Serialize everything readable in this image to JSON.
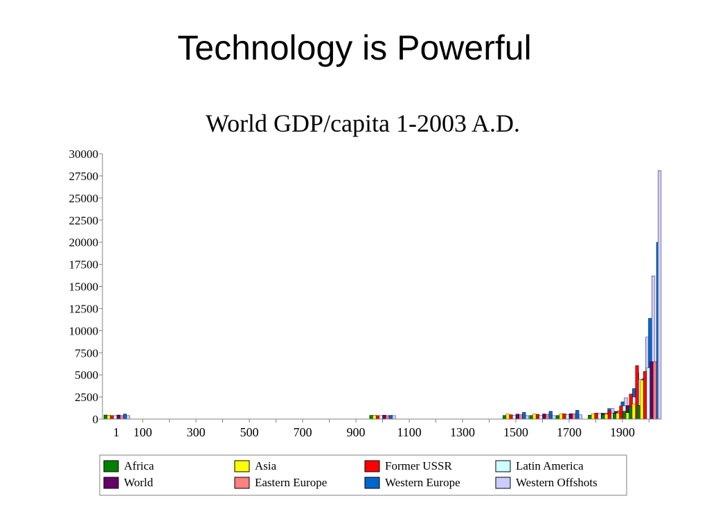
{
  "slide": {
    "title": "Technology is Powerful"
  },
  "chart_data": {
    "type": "bar",
    "title": "World GDP/capita 1-2003 A.D.",
    "xlabel": "",
    "ylabel": "",
    "ylim": [
      0,
      30000
    ],
    "yticks": [
      0,
      2500,
      5000,
      7500,
      10000,
      12500,
      15000,
      17500,
      20000,
      22500,
      25000,
      27500,
      30000
    ],
    "xtick_labels": [
      "1",
      "100",
      "300",
      "500",
      "700",
      "900",
      "1100",
      "1300",
      "1500",
      "1700",
      "1900"
    ],
    "categories": [
      "1",
      "1000",
      "1500",
      "1600",
      "1700",
      "1820",
      "1870",
      "1913",
      "1950",
      "1973",
      "2003"
    ],
    "legend_position": "bottom",
    "grid": false,
    "series": [
      {
        "name": "Africa",
        "color": "#008000",
        "values": [
          470,
          430,
          420,
          420,
          420,
          450,
          500,
          640,
          890,
          1410,
          1550
        ]
      },
      {
        "name": "Asia",
        "color": "#ffff00",
        "values": [
          450,
          450,
          570,
          570,
          570,
          580,
          550,
          680,
          720,
          1720,
          4400
        ]
      },
      {
        "name": "Former USSR",
        "color": "#ff0000",
        "values": [
          400,
          400,
          500,
          550,
          610,
          690,
          940,
          1490,
          2840,
          6060,
          5400
        ]
      },
      {
        "name": "Latin America",
        "color": "#ccffff",
        "values": [
          400,
          400,
          420,
          440,
          530,
          690,
          680,
          1490,
          2500,
          4500,
          5800
        ]
      },
      {
        "name": "World",
        "color": "#660066",
        "values": [
          470,
          450,
          570,
          590,
          620,
          670,
          880,
          1530,
          2110,
          4090,
          6500
        ]
      },
      {
        "name": "Eastern Europe",
        "color": "#ff8080",
        "values": [
          400,
          400,
          500,
          550,
          610,
          680,
          940,
          1700,
          2110,
          4990,
          6500
        ]
      },
      {
        "name": "Western Europe",
        "color": "#0066cc",
        "values": [
          580,
          430,
          770,
          890,
          1000,
          1200,
          1960,
          3460,
          4580,
          11400,
          20000
        ]
      },
      {
        "name": "Western Offshots",
        "color": "#ccccff",
        "values": [
          400,
          400,
          400,
          400,
          480,
          1200,
          2420,
          5230,
          9270,
          16200,
          28100
        ]
      }
    ]
  }
}
